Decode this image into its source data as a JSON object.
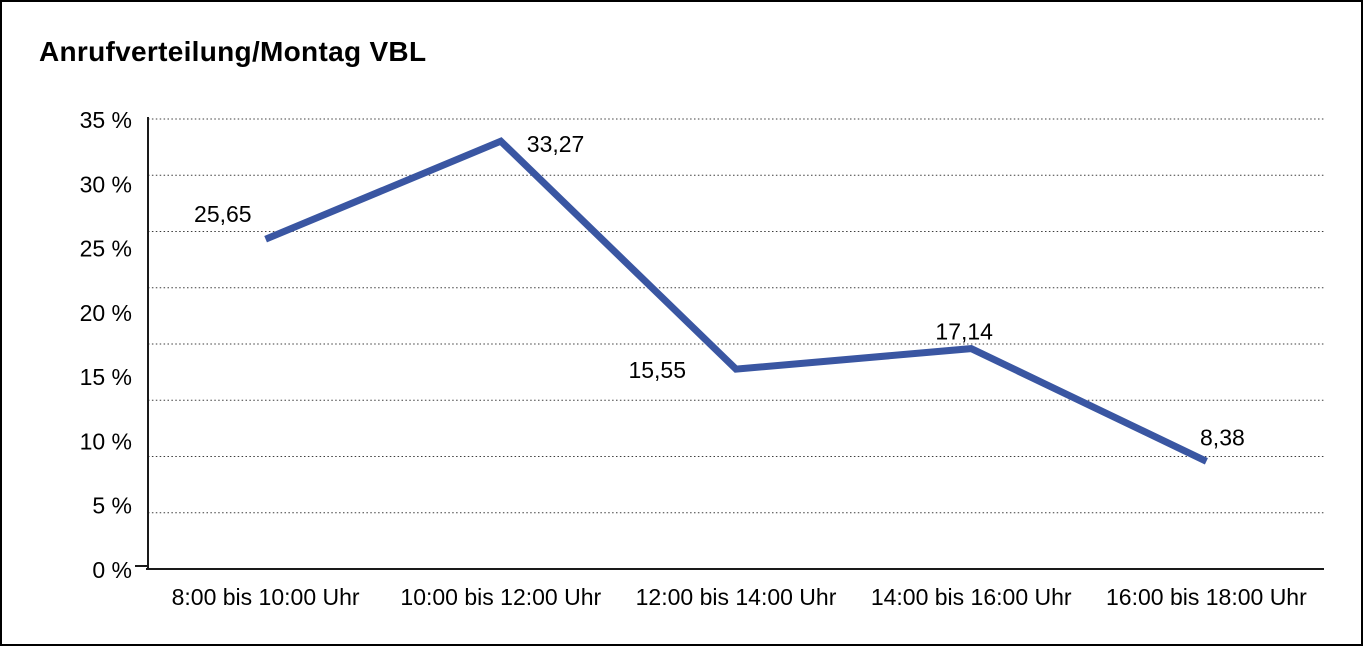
{
  "frame": {
    "background": "#ffffff",
    "border_color": "#000000"
  },
  "chart_data": {
    "type": "line",
    "title": "Anrufverteilung/Montag VBL",
    "categories": [
      "8:00 bis 10:00 Uhr",
      "10:00 bis 12:00 Uhr",
      "12:00 bis 14:00 Uhr",
      "14:00 bis 16:00 Uhr",
      "16:00 bis 18:00 Uhr"
    ],
    "values": [
      25.65,
      33.27,
      15.55,
      17.14,
      8.38
    ],
    "point_labels": [
      "25,65",
      "33,27",
      "15,55",
      "17,14",
      "8,38"
    ],
    "y_tick_labels": [
      "35 %",
      "30 %",
      "25 %",
      "20 %",
      "15 %",
      "10 %",
      "5 %",
      "0 %"
    ],
    "ylim": [
      0,
      35
    ],
    "y_tick_step": 5,
    "xlabel": "",
    "ylabel": "",
    "legend": "none",
    "grid": "horizontal-dotted",
    "line_color": "#3A56A2",
    "axis_color": "#1a1a1a",
    "gridline_color": "#3d3d3d",
    "text_color": "#000000"
  }
}
